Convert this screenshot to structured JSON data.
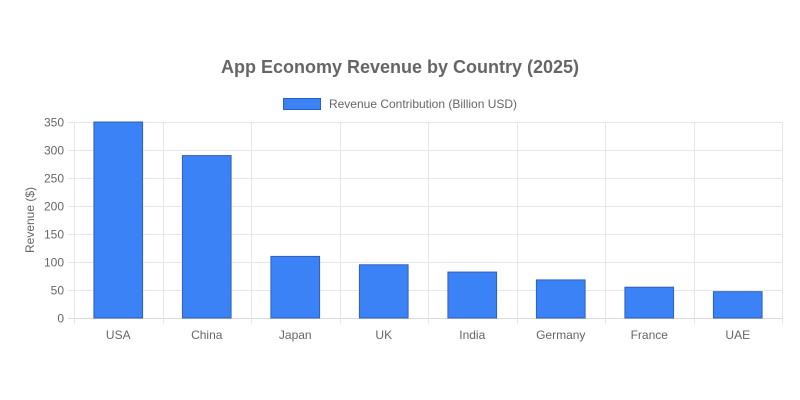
{
  "chart_data": {
    "type": "bar",
    "title": "App Economy Revenue by Country (2025)",
    "xlabel": "",
    "ylabel": "Revenue ($)",
    "ylim": [
      0,
      350
    ],
    "yticks": [
      0,
      50,
      100,
      150,
      200,
      250,
      300,
      350
    ],
    "grid": true,
    "legend_position": "top",
    "categories": [
      "USA",
      "China",
      "Japan",
      "UK",
      "India",
      "Germany",
      "France",
      "UAE"
    ],
    "series": [
      {
        "name": "Revenue Contribution (Billion USD)",
        "color": "#3b82f6",
        "border_color": "#2f5fb8",
        "values": [
          350,
          290,
          110,
          95,
          82,
          68,
          55,
          47
        ]
      }
    ]
  }
}
